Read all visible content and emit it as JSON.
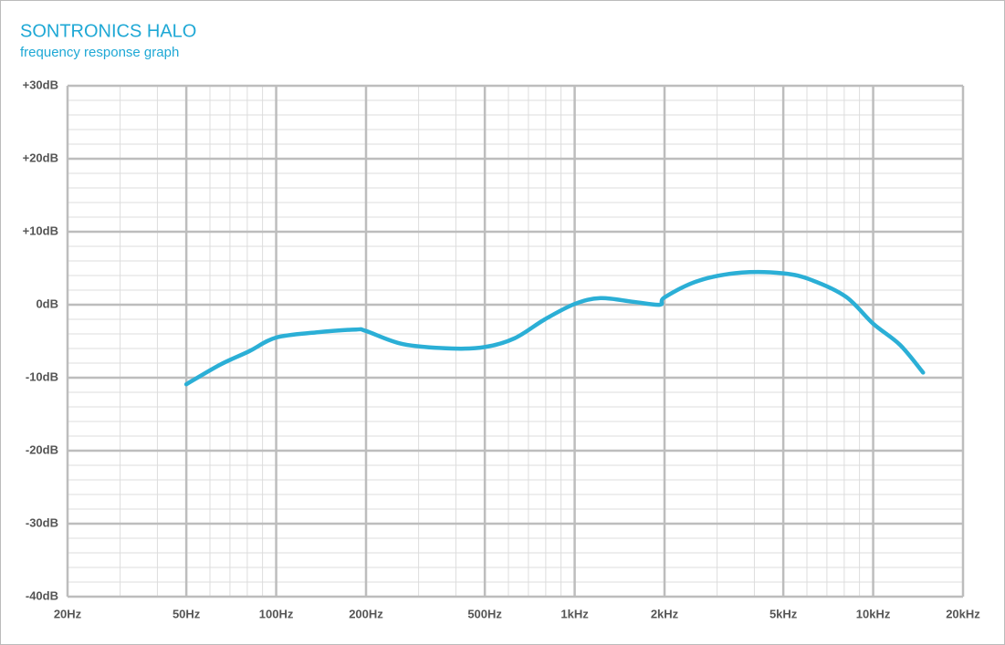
{
  "chart_data": {
    "type": "line",
    "title": "SONTRONICS HALO",
    "subtitle": "frequency response graph",
    "x": [
      50,
      65,
      81,
      100,
      136,
      185,
      200,
      266,
      387,
      500,
      629,
      795,
      1000,
      1220,
      1570,
      1930,
      2000,
      2610,
      3630,
      5000,
      6200,
      8100,
      10000,
      12300,
      14700
    ],
    "series": [
      {
        "name": "Sontronics Halo",
        "color": "#2bafd6",
        "values": [
          -10.9,
          -8.2,
          -6.4,
          -4.5,
          -3.8,
          -3.4,
          -3.6,
          -5.4,
          -6.0,
          -5.8,
          -4.6,
          -2.0,
          0.1,
          0.9,
          0.4,
          0,
          1.0,
          3.3,
          4.4,
          4.3,
          3.4,
          1.1,
          -2.6,
          -5.5,
          -9.3
        ]
      }
    ],
    "xscale": "log",
    "xlim": [
      20,
      20000
    ],
    "xticks": [
      {
        "value": 20,
        "label": "20Hz"
      },
      {
        "value": 50,
        "label": "50Hz"
      },
      {
        "value": 100,
        "label": "100Hz"
      },
      {
        "value": 200,
        "label": "200Hz"
      },
      {
        "value": 500,
        "label": "500Hz"
      },
      {
        "value": 1000,
        "label": "1kHz"
      },
      {
        "value": 2000,
        "label": "2kHz"
      },
      {
        "value": 5000,
        "label": "5kHz"
      },
      {
        "value": 10000,
        "label": "10kHz"
      },
      {
        "value": 20000,
        "label": "20kHz"
      }
    ],
    "ylim": [
      -40,
      30
    ],
    "yticks": [
      {
        "value": 30,
        "label": "+30dB"
      },
      {
        "value": 20,
        "label": "+20dB"
      },
      {
        "value": 10,
        "label": "+10dB"
      },
      {
        "value": 0,
        "label": "0dB"
      },
      {
        "value": -10,
        "label": "-10dB"
      },
      {
        "value": -20,
        "label": "-20dB"
      },
      {
        "value": -30,
        "label": "-30dB"
      },
      {
        "value": -40,
        "label": "-40dB"
      }
    ],
    "grid": true
  }
}
